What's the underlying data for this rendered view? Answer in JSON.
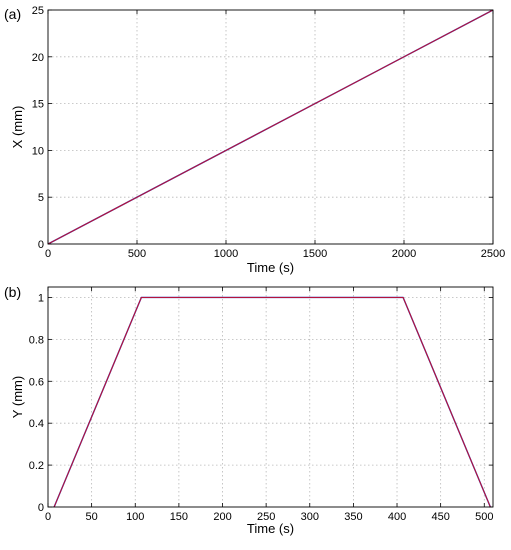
{
  "colors": {
    "series_a": "#2a2aa8",
    "series_b": "#c8102e",
    "grid": "#b8b8b8"
  },
  "chart_data": [
    {
      "panel_label": "(a)",
      "type": "line",
      "xlabel": "Time (s)",
      "ylabel": "X (mm)",
      "xlim": [
        0,
        2500
      ],
      "ylim": [
        0,
        25
      ],
      "xticks": [
        0,
        500,
        1000,
        1500,
        2000,
        2500
      ],
      "yticks": [
        0,
        5,
        10,
        15,
        20,
        25
      ],
      "grid": true,
      "series": [
        {
          "color": "#2a2aa8",
          "x": [
            0,
            2500
          ],
          "y": [
            0,
            25
          ]
        },
        {
          "color": "#c8102e",
          "x": [
            0,
            2500
          ],
          "y": [
            0,
            25
          ]
        }
      ]
    },
    {
      "panel_label": "(b)",
      "type": "line",
      "xlabel": "Time (s)",
      "ylabel": "Y (mm)",
      "xlim": [
        0,
        510
      ],
      "ylim": [
        0,
        1.05
      ],
      "xticks": [
        0,
        50,
        100,
        150,
        200,
        250,
        300,
        350,
        400,
        450,
        500
      ],
      "yticks": [
        0,
        0.2,
        0.4,
        0.6,
        0.8,
        1
      ],
      "grid": true,
      "series": [
        {
          "color": "#2a2aa8",
          "x": [
            7,
            107,
            407,
            507
          ],
          "y": [
            0,
            1,
            1,
            0
          ]
        },
        {
          "color": "#c8102e",
          "x": [
            7,
            107,
            407,
            507
          ],
          "y": [
            0,
            1,
            1,
            0
          ]
        }
      ]
    }
  ]
}
